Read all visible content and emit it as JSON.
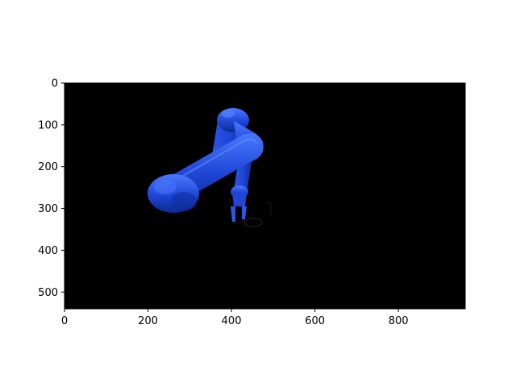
{
  "figure": {
    "image_extent": {
      "x": [
        0,
        960
      ],
      "y": [
        540,
        0
      ]
    },
    "xticks": [
      0,
      200,
      400,
      600,
      800
    ],
    "yticks": [
      0,
      100,
      200,
      300,
      400,
      500
    ],
    "colors": {
      "background": "#000000",
      "robot_blue": "#1f46d6",
      "robot_highlight": "#4a78ff",
      "robot_shadow": "#0d2a8f"
    },
    "scene": "blue robotic arm rendered on black background"
  }
}
